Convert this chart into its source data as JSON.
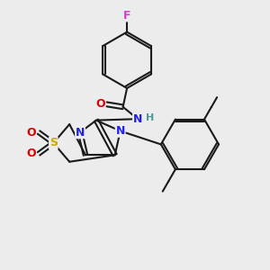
{
  "background_color": "#ececec",
  "bond_color": "#1a1a1a",
  "F_color": "#cc44cc",
  "O_color": "#dd0000",
  "N_color": "#2222ee",
  "H_color": "#4d9999",
  "S_color": "#ccaa00",
  "figsize": [
    3.0,
    3.0
  ],
  "dpi": 100,
  "xlim": [
    0,
    10
  ],
  "ylim": [
    0,
    10
  ]
}
